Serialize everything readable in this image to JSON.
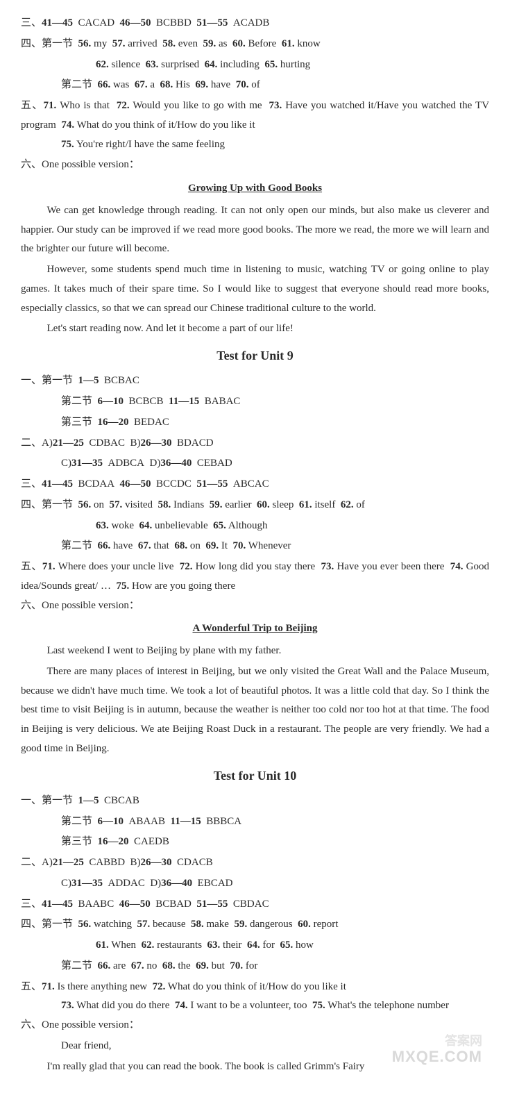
{
  "colors": {
    "text": "#2a2a2a",
    "bg": "#ffffff",
    "watermark": "#d9d9d9"
  },
  "typography": {
    "base_size_pt": 15,
    "title_size_pt": 18,
    "line_height": 1.85,
    "font": "Times New Roman / SimSun"
  },
  "u8_tail": {
    "s3": {
      "label": "三、",
      "r1": "41—45",
      "a1": "CACAD",
      "r2": "46—50",
      "a2": "BCBBD",
      "r3": "51—55",
      "a3": "ACADB"
    },
    "s4": {
      "label": "四、",
      "p1_label": "第一节",
      "p1_line1": [
        {
          "n": "56.",
          "t": "my"
        },
        {
          "n": "57.",
          "t": "arrived"
        },
        {
          "n": "58.",
          "t": "even"
        },
        {
          "n": "59.",
          "t": "as"
        },
        {
          "n": "60.",
          "t": "Before"
        },
        {
          "n": "61.",
          "t": "know"
        }
      ],
      "p1_line2": [
        {
          "n": "62.",
          "t": "silence"
        },
        {
          "n": "63.",
          "t": "surprised"
        },
        {
          "n": "64.",
          "t": "including"
        },
        {
          "n": "65.",
          "t": "hurting"
        }
      ],
      "p2_label": "第二节",
      "p2_line1": [
        {
          "n": "66.",
          "t": "was"
        },
        {
          "n": "67.",
          "t": "a"
        },
        {
          "n": "68.",
          "t": "His"
        },
        {
          "n": "69.",
          "t": "have"
        },
        {
          "n": "70.",
          "t": "of"
        }
      ]
    },
    "s5": {
      "label": "五、",
      "q71n": "71.",
      "q71": "Who is that",
      "q72n": "72.",
      "q72": "Would you like to go with me",
      "q73n": "73.",
      "q73": "Have you watched it/Have you watched the TV program",
      "q74n": "74.",
      "q74": "What do you think of it/How do you like it",
      "q75n": "75.",
      "q75": "You're right/I have the same feeling"
    },
    "s6": {
      "label": "六、",
      "intro": "One possible version：",
      "title": "Growing Up with Good Books",
      "p1": "We can get knowledge through reading. It can not only open our minds, but also make us cleverer and happier. Our study can be improved if we read more good books. The more we read, the more we will learn and the brighter our future will become.",
      "p2": "However, some students spend much time in listening to music, watching TV or going online to play games. It takes much of their spare time. So I would like to suggest that everyone should read more books, especially classics, so that we can spread our Chinese traditional culture to the world.",
      "p3": "Let's start reading now. And let it become a part of our life!"
    }
  },
  "u9": {
    "heading": "Test for Unit 9",
    "s1": {
      "label": "一、",
      "p1_label": "第一节",
      "p1_r": "1—5",
      "p1_a": "BCBAC",
      "p2_label": "第二节",
      "p2_r1": "6—10",
      "p2_a1": "BCBCB",
      "p2_r2": "11—15",
      "p2_a2": "BABAC",
      "p3_label": "第三节",
      "p3_r": "16—20",
      "p3_a": "BEDAC"
    },
    "s2": {
      "label": "二、",
      "ga": "A)",
      "gar": "21—25",
      "gaa": "CDBAC",
      "gb": "B)",
      "gbr": "26—30",
      "gba": "BDACD",
      "gc": "C)",
      "gcr": "31—35",
      "gca": "ADBCA",
      "gd": "D)",
      "gdr": "36—40",
      "gda": "CEBAD"
    },
    "s3": {
      "label": "三、",
      "r1": "41—45",
      "a1": "BCDAA",
      "r2": "46—50",
      "a2": "BCCDC",
      "r3": "51—55",
      "a3": "ABCAC"
    },
    "s4": {
      "label": "四、",
      "p1_label": "第一节",
      "p1_line1": [
        {
          "n": "56.",
          "t": "on"
        },
        {
          "n": "57.",
          "t": "visited"
        },
        {
          "n": "58.",
          "t": "Indians"
        },
        {
          "n": "59.",
          "t": "earlier"
        },
        {
          "n": "60.",
          "t": "sleep"
        },
        {
          "n": "61.",
          "t": "itself"
        },
        {
          "n": "62.",
          "t": "of"
        }
      ],
      "p1_line2": [
        {
          "n": "63.",
          "t": "woke"
        },
        {
          "n": "64.",
          "t": "unbelievable"
        },
        {
          "n": "65.",
          "t": "Although"
        }
      ],
      "p2_label": "第二节",
      "p2_line1": [
        {
          "n": "66.",
          "t": "have"
        },
        {
          "n": "67.",
          "t": "that"
        },
        {
          "n": "68.",
          "t": "on"
        },
        {
          "n": "69.",
          "t": "It"
        },
        {
          "n": "70.",
          "t": "Whenever"
        }
      ]
    },
    "s5": {
      "label": "五、",
      "q71n": "71.",
      "q71": "Where does your uncle live",
      "q72n": "72.",
      "q72": "How long did you stay there",
      "q73n": "73.",
      "q73": "Have you ever been there",
      "q74n": "74.",
      "q74": "Good idea/Sounds great/ …",
      "q75n": "75.",
      "q75": "How are you going there"
    },
    "s6": {
      "label": "六、",
      "intro": "One possible version：",
      "title": "A Wonderful Trip to Beijing",
      "p1": "Last weekend I went to Beijing by plane with my father.",
      "p2": "There are many places of interest in Beijing, but we only visited the Great Wall and the Palace Museum, because we didn't have much time. We took a lot of beautiful photos. It was a little cold that day. So I think the best time to visit Beijing is in autumn, because the weather is neither too cold nor too hot at that time. The food in Beijing is very delicious. We ate Beijing Roast Duck in a restaurant. The people are very friendly. We had a good time in Beijing."
    }
  },
  "u10": {
    "heading": "Test for Unit 10",
    "s1": {
      "label": "一、",
      "p1_label": "第一节",
      "p1_r": "1—5",
      "p1_a": "CBCAB",
      "p2_label": "第二节",
      "p2_r1": "6—10",
      "p2_a1": "ABAAB",
      "p2_r2": "11—15",
      "p2_a2": "BBBCA",
      "p3_label": "第三节",
      "p3_r": "16—20",
      "p3_a": "CAEDB"
    },
    "s2": {
      "label": "二、",
      "ga": "A)",
      "gar": "21—25",
      "gaa": "CABBD",
      "gb": "B)",
      "gbr": "26—30",
      "gba": "CDACB",
      "gc": "C)",
      "gcr": "31—35",
      "gca": "ADDAC",
      "gd": "D)",
      "gdr": "36—40",
      "gda": "EBCAD"
    },
    "s3": {
      "label": "三、",
      "r1": "41—45",
      "a1": "BAABC",
      "r2": "46—50",
      "a2": "BCBAD",
      "r3": "51—55",
      "a3": "CBDAC"
    },
    "s4": {
      "label": "四、",
      "p1_label": "第一节",
      "p1_line1": [
        {
          "n": "56.",
          "t": "watching"
        },
        {
          "n": "57.",
          "t": "because"
        },
        {
          "n": "58.",
          "t": "make"
        },
        {
          "n": "59.",
          "t": "dangerous"
        },
        {
          "n": "60.",
          "t": "report"
        }
      ],
      "p1_line2": [
        {
          "n": "61.",
          "t": "When"
        },
        {
          "n": "62.",
          "t": "restaurants"
        },
        {
          "n": "63.",
          "t": "their"
        },
        {
          "n": "64.",
          "t": "for"
        },
        {
          "n": "65.",
          "t": "how"
        }
      ],
      "p2_label": "第二节",
      "p2_line1": [
        {
          "n": "66.",
          "t": "are"
        },
        {
          "n": "67.",
          "t": "no"
        },
        {
          "n": "68.",
          "t": "the"
        },
        {
          "n": "69.",
          "t": "but"
        },
        {
          "n": "70.",
          "t": "for"
        }
      ]
    },
    "s5": {
      "label": "五、",
      "q71n": "71.",
      "q71": "Is there anything new",
      "q72n": "72.",
      "q72": "What do you think of it/How do you like it",
      "q73n": "73.",
      "q73": "What did you do there",
      "q74n": "74.",
      "q74": "I want to be a volunteer, too",
      "q75n": "75.",
      "q75": "What's the telephone number"
    },
    "s6": {
      "label": "六、",
      "intro": "One possible version：",
      "greeting": "Dear friend,",
      "p1": "I'm really glad that you can read the book. The book is called Grimm's Fairy"
    }
  },
  "watermark1": "答案网",
  "watermark2": "MXQE.COM"
}
